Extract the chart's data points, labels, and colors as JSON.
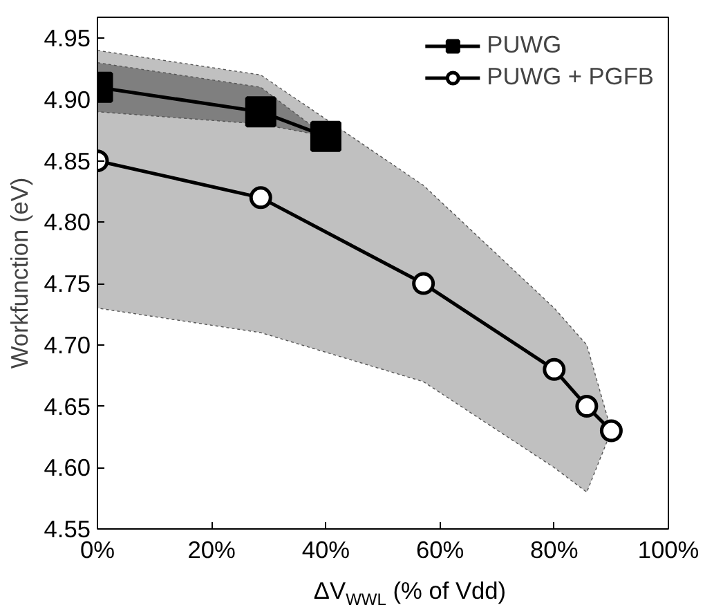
{
  "chart_data": {
    "type": "line",
    "xlabel": "ΔV$_{WWL}$ (% of Vdd)",
    "ylabel": "Workfunction (eV)",
    "xlim": [
      0,
      100
    ],
    "xticks": [
      {
        "value": 0,
        "label": "0%"
      },
      {
        "value": 20,
        "label": "20%"
      },
      {
        "value": 40,
        "label": "40%"
      },
      {
        "value": 60,
        "label": "60%"
      },
      {
        "value": 80,
        "label": "80%"
      },
      {
        "value": 100,
        "label": "100%"
      }
    ],
    "ylim": [
      4.55,
      4.967
    ],
    "yticks": [
      {
        "value": 4.55,
        "label": "4.55"
      },
      {
        "value": 4.6,
        "label": "4.60"
      },
      {
        "value": 4.65,
        "label": "4.65"
      },
      {
        "value": 4.7,
        "label": "4.70"
      },
      {
        "value": 4.75,
        "label": "4.75"
      },
      {
        "value": 4.8,
        "label": "4.80"
      },
      {
        "value": 4.85,
        "label": "4.85"
      },
      {
        "value": 4.9,
        "label": "4.90"
      },
      {
        "value": 4.95,
        "label": "4.95"
      }
    ],
    "grid": false,
    "legend": "top right",
    "series": [
      {
        "name": "PUWG",
        "color": "#000000",
        "marker": "square",
        "x": [
          0,
          28.6,
          40
        ],
        "values": [
          4.91,
          4.89,
          4.87
        ],
        "lower": [
          4.89,
          4.88,
          4.87
        ],
        "upper": [
          4.93,
          4.91,
          4.87
        ]
      },
      {
        "name": "PUWG + PGFB",
        "color": "#000000",
        "marker": "circle",
        "x": [
          0,
          28.6,
          57.1,
          80,
          85.7,
          90
        ],
        "values": [
          4.85,
          4.82,
          4.75,
          4.68,
          4.65,
          4.63
        ],
        "lower": [
          4.73,
          4.71,
          4.67,
          4.6,
          4.58,
          4.63
        ],
        "upper": [
          4.94,
          4.92,
          4.83,
          4.73,
          4.7,
          4.63
        ]
      }
    ]
  }
}
